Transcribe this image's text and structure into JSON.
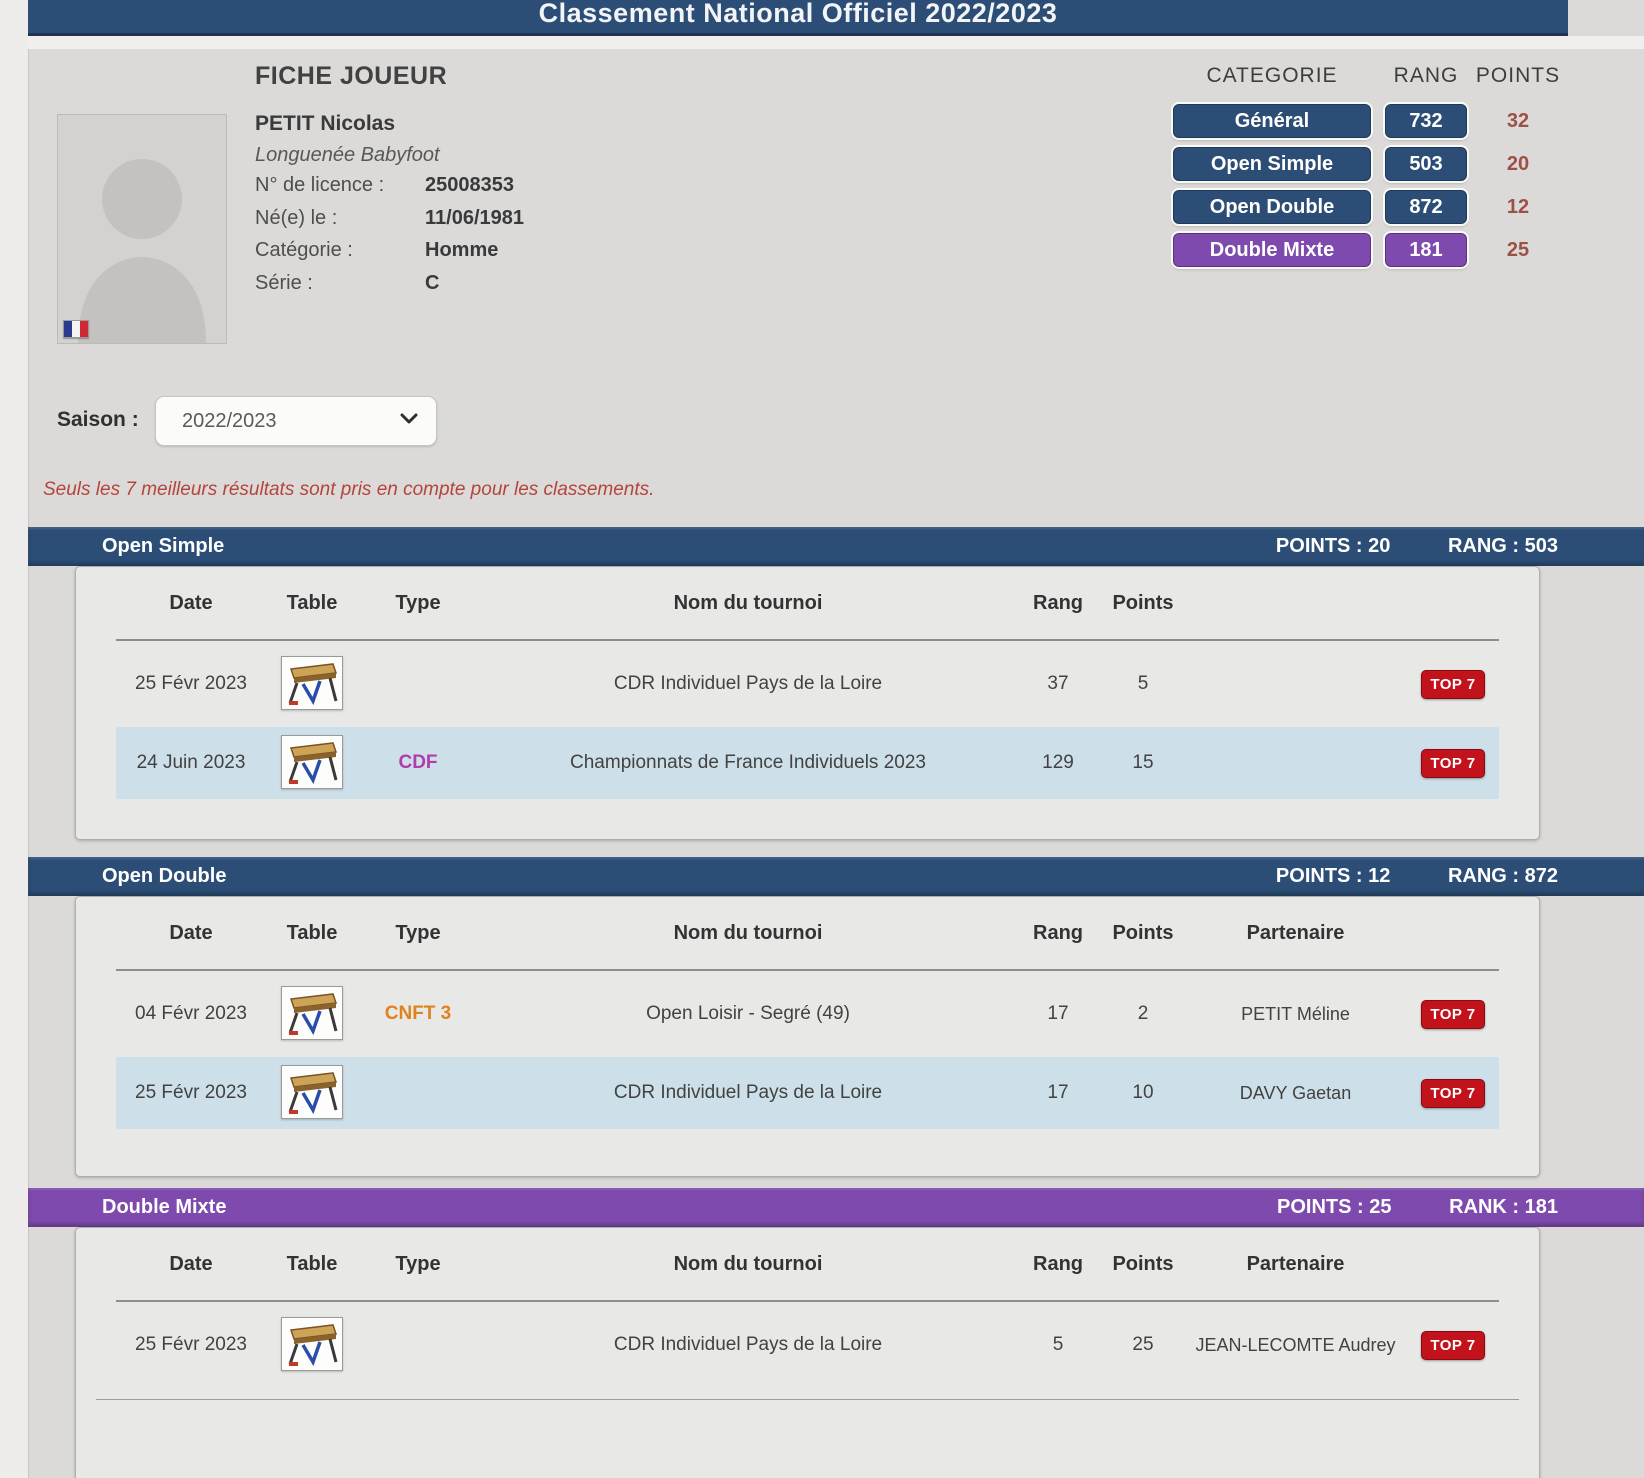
{
  "page_title": "Classement National Officiel 2022/2023",
  "player": {
    "card_title": "FICHE JOUEUR",
    "name": "PETIT Nicolas",
    "club": "Longuenée Babyfoot",
    "license_label": "N° de licence :",
    "license": "25008353",
    "birth_label": "Né(e) le :",
    "birth": "11/06/1981",
    "category_label": "Catégorie :",
    "category": "Homme",
    "serie_label": "Série :",
    "serie": "C"
  },
  "rankings": {
    "headers": {
      "category": "CATEGORIE",
      "rank": "RANG",
      "points": "POINTS"
    },
    "rows": [
      {
        "category": "Général",
        "rank": "732",
        "points": "32",
        "theme": "blue"
      },
      {
        "category": "Open Simple",
        "rank": "503",
        "points": "20",
        "theme": "blue"
      },
      {
        "category": "Open Double",
        "rank": "872",
        "points": "12",
        "theme": "blue"
      },
      {
        "category": "Double Mixte",
        "rank": "181",
        "points": "25",
        "theme": "purple"
      }
    ]
  },
  "season": {
    "label": "Saison :",
    "selected": "2022/2023"
  },
  "note": "Seuls les 7 meilleurs résultats sont pris en compte pour les classements.",
  "sections": [
    {
      "title": "Open Simple",
      "points_label": "POINTS : 20",
      "rank_label": "RANG : 503",
      "theme": "blue",
      "columns": {
        "date": "Date",
        "table": "Table",
        "type": "Type",
        "tournament": "Nom du tournoi",
        "rank": "Rang",
        "points": "Points",
        "partner": ""
      },
      "rows": [
        {
          "date": "25 Févr 2023",
          "type": "",
          "type_color": "",
          "tournament": "CDR Individuel Pays de la Loire",
          "rank": "37",
          "points": "5",
          "partner": "",
          "badge": "TOP 7"
        },
        {
          "date": "24 Juin 2023",
          "type": "CDF",
          "type_color": "magenta",
          "tournament": "Championnats de France Individuels 2023",
          "rank": "129",
          "points": "15",
          "partner": "",
          "badge": "TOP 7"
        }
      ]
    },
    {
      "title": "Open Double",
      "points_label": "POINTS : 12",
      "rank_label": "RANG : 872",
      "theme": "blue",
      "columns": {
        "date": "Date",
        "table": "Table",
        "type": "Type",
        "tournament": "Nom du tournoi",
        "rank": "Rang",
        "points": "Points",
        "partner": "Partenaire"
      },
      "rows": [
        {
          "date": "04 Févr 2023",
          "type": "CNFT 3",
          "type_color": "orange",
          "tournament": "Open Loisir - Segré (49)",
          "rank": "17",
          "points": "2",
          "partner": "PETIT Méline",
          "badge": "TOP 7"
        },
        {
          "date": "25 Févr 2023",
          "type": "",
          "type_color": "",
          "tournament": "CDR Individuel Pays de la Loire",
          "rank": "17",
          "points": "10",
          "partner": "DAVY Gaetan",
          "badge": "TOP 7"
        }
      ]
    },
    {
      "title": "Double Mixte",
      "points_label": "POINTS : 25",
      "rank_label": "RANK : 181",
      "theme": "purple",
      "columns": {
        "date": "Date",
        "table": "Table",
        "type": "Type",
        "tournament": "Nom du tournoi",
        "rank": "Rang",
        "points": "Points",
        "partner": "Partenaire"
      },
      "rows": [
        {
          "date": "25 Févr 2023",
          "type": "",
          "type_color": "",
          "tournament": "CDR Individuel Pays de la Loire",
          "rank": "5",
          "points": "25",
          "partner": "JEAN-LECOMTE Audrey",
          "badge": "TOP 7"
        }
      ]
    }
  ],
  "colors": {
    "accent_blue": "#2c4e76",
    "accent_purple": "#7e4aad",
    "badge_red": "#c2121c",
    "type_cdf": "#b13cab",
    "type_cnft": "#e0821f",
    "points_text": "#9c5046",
    "note_red": "#b5443c",
    "alt_row": "#cddfe9"
  }
}
